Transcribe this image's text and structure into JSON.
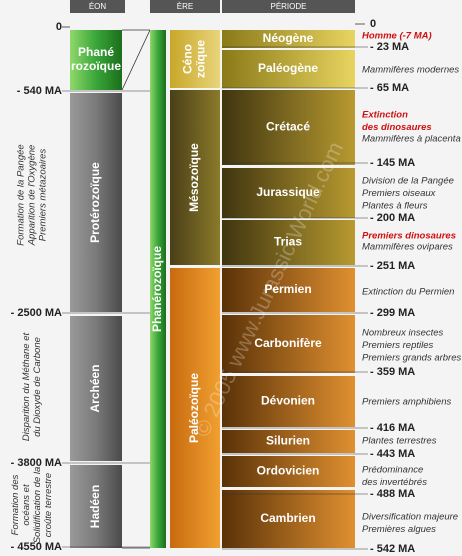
{
  "headers": [
    "ÉON",
    "ÈRE",
    "PÉRIODE"
  ],
  "eon_ages": [
    "0",
    "- 540 MA",
    "- 2500 MA",
    "- 3800 MA",
    "- 4550 MA"
  ],
  "eons": [
    [
      "Phané",
      "rozoïque"
    ],
    [
      "Protérozoïque"
    ],
    [
      "Archéen"
    ],
    [
      "Hadéen"
    ]
  ],
  "eon_notes": [
    [
      "Formation de la Pangée",
      "Apparition de l'Oxygène",
      "Premiers métazoaires"
    ],
    [
      "Disparition du Méthane et",
      "du Dioxyde de Carbone"
    ],
    [
      "Formation des",
      "océans et",
      "Solidification de la",
      "croûte terrestre"
    ]
  ],
  "supereon": "Phanérozoïque",
  "eras": [
    [
      "Céno",
      "zoïque"
    ],
    [
      "Mésozoïque"
    ],
    [
      "Paléozoïque"
    ]
  ],
  "periods": [
    "Néogène",
    "Paléogène",
    "Crétacé",
    "Jurassique",
    "Trias",
    "Permien",
    "Carbonifère",
    "Dévonien",
    "Silurien",
    "Ordovicien",
    "Cambrien"
  ],
  "period_ages": [
    "0",
    "- 23 MA",
    "- 65 MA",
    "- 145 MA",
    "- 200 MA",
    "- 251 MA",
    "- 299 MA",
    "- 359 MA",
    "- 416 MA",
    "- 443 MA",
    "- 488 MA",
    "- 542 MA"
  ],
  "events": [
    {
      "lines": [
        "Homme (-7 MA)"
      ],
      "highlight": true
    },
    {
      "lines": [
        "Mammifères modernes"
      ]
    },
    {
      "lines": [
        "Extinction",
        "des dinosaures"
      ],
      "highlight": true
    },
    {
      "lines": [
        "Mammifères à placenta"
      ]
    },
    {
      "lines": [
        "Division de la Pangée",
        "Premiers oiseaux",
        "Plantes à fleurs"
      ]
    },
    {
      "lines": [
        "Premiers dinosaures"
      ],
      "highlight": true
    },
    {
      "lines": [
        "Mammifères ovipares"
      ]
    },
    {
      "lines": [
        "Extinction du Permien"
      ]
    },
    {
      "lines": [
        "Nombreux insectes",
        "Premiers reptiles",
        "Premiers grands arbres"
      ]
    },
    {
      "lines": [
        "Premiers amphibiens"
      ]
    },
    {
      "lines": [
        "Plantes terrestres"
      ]
    },
    {
      "lines": [
        "Prédominance",
        "des invertébrés"
      ]
    },
    {
      "lines": [
        "Diversification majeure",
        "Premières algues"
      ]
    }
  ],
  "watermark": "© 2005 www.Jurassic-World.com"
}
